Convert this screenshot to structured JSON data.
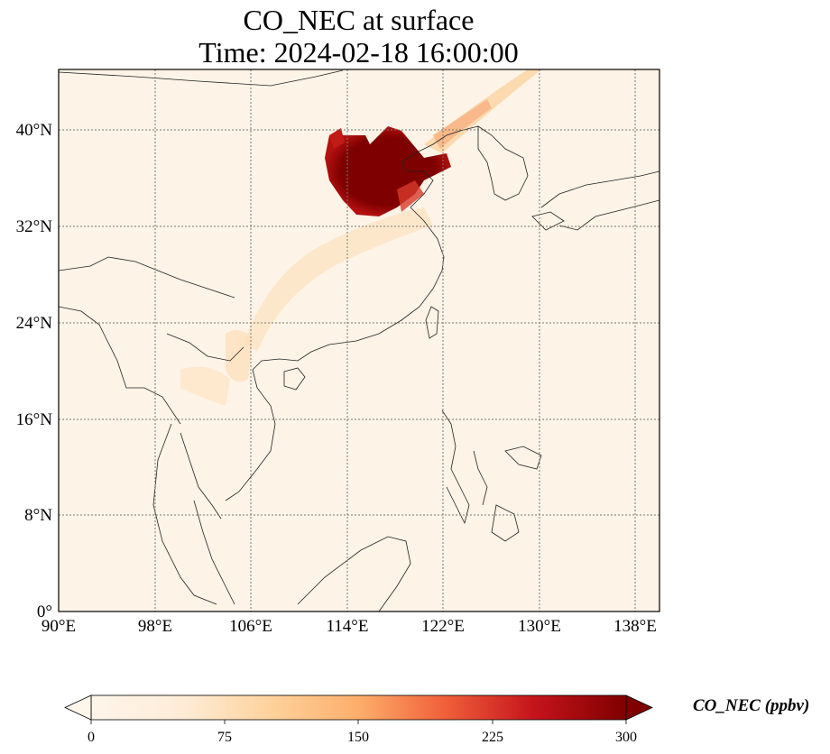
{
  "title": {
    "line1": "CO_NEC at surface",
    "line2": "Time: 2024-02-18 16:00:00"
  },
  "map": {
    "lon_range": [
      90,
      140
    ],
    "lat_range": [
      0,
      45
    ],
    "lon_ticks": [
      {
        "value": 90,
        "label": "90°E"
      },
      {
        "value": 98,
        "label": "98°E"
      },
      {
        "value": 106,
        "label": "106°E"
      },
      {
        "value": 114,
        "label": "114°E"
      },
      {
        "value": 122,
        "label": "122°E"
      },
      {
        "value": 130,
        "label": "130°E"
      },
      {
        "value": 138,
        "label": "138°E"
      }
    ],
    "lat_ticks": [
      {
        "value": 0,
        "label": "0°"
      },
      {
        "value": 8,
        "label": "8°N"
      },
      {
        "value": 16,
        "label": "16°N"
      },
      {
        "value": 24,
        "label": "24°N"
      },
      {
        "value": 32,
        "label": "32°N"
      },
      {
        "value": 40,
        "label": "40°N"
      }
    ],
    "background_color": "#fdf2e4",
    "gridlines": "dotted"
  },
  "colorbar": {
    "label": "CO_NEC (ppbv)",
    "ticks": [
      {
        "value": 0,
        "label": "0"
      },
      {
        "value": 75,
        "label": "75"
      },
      {
        "value": 150,
        "label": "150"
      },
      {
        "value": 225,
        "label": "225"
      },
      {
        "value": 300,
        "label": "300"
      }
    ],
    "range": [
      0,
      300
    ],
    "extend": "both",
    "colormap": [
      "#fff5eb",
      "#fdd9b2",
      "#fdae6b",
      "#f16913",
      "#d94801",
      "#a50f15",
      "#7f0000"
    ]
  }
}
